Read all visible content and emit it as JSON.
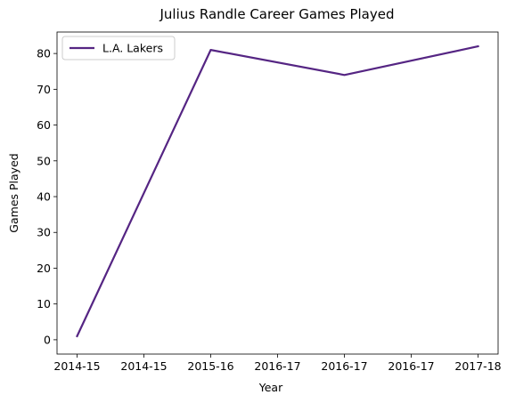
{
  "chart_data": {
    "type": "line",
    "title": "Julius Randle Career Games Played",
    "xlabel": "Year",
    "ylabel": "Games Played",
    "x_tick_labels": [
      "2014-15",
      "2014-15",
      "2015-16",
      "2016-17",
      "2016-17",
      "2016-17",
      "2017-18"
    ],
    "x_tick_positions": [
      0,
      0.5,
      1,
      1.5,
      2,
      2.5,
      3
    ],
    "xlim": [
      -0.15,
      3.15
    ],
    "ylim": [
      -4,
      86
    ],
    "y_ticks": [
      0,
      10,
      20,
      30,
      40,
      50,
      60,
      70,
      80
    ],
    "grid": false,
    "legend_position": "top-left",
    "series": [
      {
        "name": "L.A. Lakers",
        "color": "#552583",
        "x": [
          0,
          1,
          2,
          3
        ],
        "categories": [
          "2014-15",
          "2015-16",
          "2016-17",
          "2017-18"
        ],
        "values": [
          1,
          81,
          74,
          82
        ]
      }
    ]
  }
}
